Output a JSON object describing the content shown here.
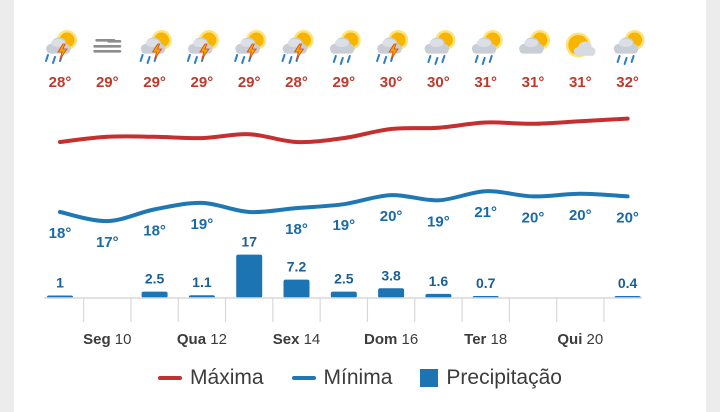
{
  "colors": {
    "max": "#c62f2f",
    "min": "#1f77b4",
    "precip": "#1d74b3",
    "max_text": "#c0392b",
    "min_text": "#1a6aa6",
    "axis_text": "#3c3c3c",
    "grid": "#d8d8d8"
  },
  "chart_data": {
    "type": "line",
    "days": 13,
    "icons": [
      "storm-sun-icon",
      "fog-icon",
      "storm-sun-icon",
      "storm-sun-icon",
      "storm-sun-icon",
      "storm-sun-icon",
      "rain-sun-icon",
      "storm-sun-icon",
      "rain-sun-icon",
      "rain-sun-icon",
      "cloud-sun-icon",
      "sun-cloud-icon",
      "rain-sun-icon"
    ],
    "max_labels": [
      "28°",
      "29°",
      "29°",
      "29°",
      "29°",
      "28°",
      "29°",
      "30°",
      "30°",
      "31°",
      "31°",
      "31°",
      "32°"
    ],
    "min_labels": [
      "18°",
      "17°",
      "18°",
      "19°",
      "",
      "18°",
      "19°",
      "20°",
      "19°",
      "21°",
      "20°",
      "20°",
      "20°"
    ],
    "max_line": [
      28.6,
      29.0,
      29.0,
      28.9,
      29.2,
      28.6,
      28.9,
      29.6,
      29.7,
      30.1,
      30.0,
      30.2,
      30.4
    ],
    "min_line": [
      18.9,
      18.2,
      19.1,
      19.6,
      18.9,
      19.2,
      19.5,
      20.2,
      19.8,
      20.5,
      20.1,
      20.3,
      20.1
    ],
    "precip_labels": [
      "1",
      "",
      "2.5",
      "1.1",
      "17",
      "7.2",
      "2.5",
      "3.8",
      "1.6",
      "0.7",
      "",
      "",
      "0.4"
    ],
    "precip_values": [
      1,
      0,
      2.5,
      1.1,
      17,
      7.2,
      2.5,
      3.8,
      1.6,
      0.7,
      0,
      0,
      0.4
    ],
    "x_ticks": [
      {
        "day": 1,
        "weekday": "Seg",
        "date": "10"
      },
      {
        "day": 3,
        "weekday": "Qua",
        "date": "12"
      },
      {
        "day": 5,
        "weekday": "Sex",
        "date": "14"
      },
      {
        "day": 7,
        "weekday": "Dom",
        "date": "16"
      },
      {
        "day": 9,
        "weekday": "Ter",
        "date": "18"
      },
      {
        "day": 11,
        "weekday": "Qui",
        "date": "20"
      }
    ],
    "series": [
      {
        "name": "Máxima",
        "key": "max_line"
      },
      {
        "name": "Mínima",
        "key": "min_line"
      },
      {
        "name": "Precipitação",
        "key": "precip_values"
      }
    ]
  },
  "legend": {
    "max_label": "Máxima",
    "min_label": "Mínima",
    "precip_label": "Precipitação"
  }
}
